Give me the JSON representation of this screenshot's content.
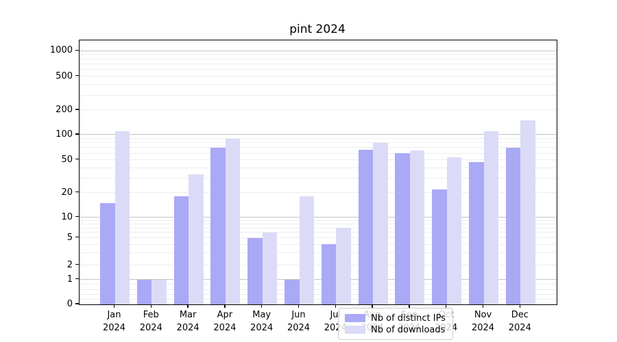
{
  "chart_data": {
    "type": "bar",
    "title": "pint 2024",
    "categories": [
      "Jan",
      "Feb",
      "Mar",
      "Apr",
      "May",
      "Jun",
      "Jul",
      "Aug",
      "Sep",
      "Oct",
      "Nov",
      "Dec"
    ],
    "xtick_year": "2024",
    "series": [
      {
        "name": "Nb of distinct IPs",
        "color": "#a9a9f6",
        "values": [
          15,
          1,
          18,
          70,
          5,
          1,
          4,
          66,
          60,
          22,
          47,
          70
        ]
      },
      {
        "name": "Nb of downloads",
        "color": "#dbdbf8",
        "values": [
          110,
          1,
          33,
          90,
          6,
          18,
          7,
          80,
          65,
          54,
          110,
          150
        ]
      }
    ],
    "yscale": "symlog",
    "yticks": [
      0,
      1,
      2,
      5,
      10,
      20,
      50,
      100,
      200,
      500,
      1000
    ],
    "ylim": [
      0,
      1400
    ],
    "grid": true,
    "legend_position": "lower center",
    "colors": {
      "major_grid": "#c4c4c4",
      "minor_grid": "#ededed",
      "axis": "#000000",
      "background": "#ffffff"
    }
  }
}
